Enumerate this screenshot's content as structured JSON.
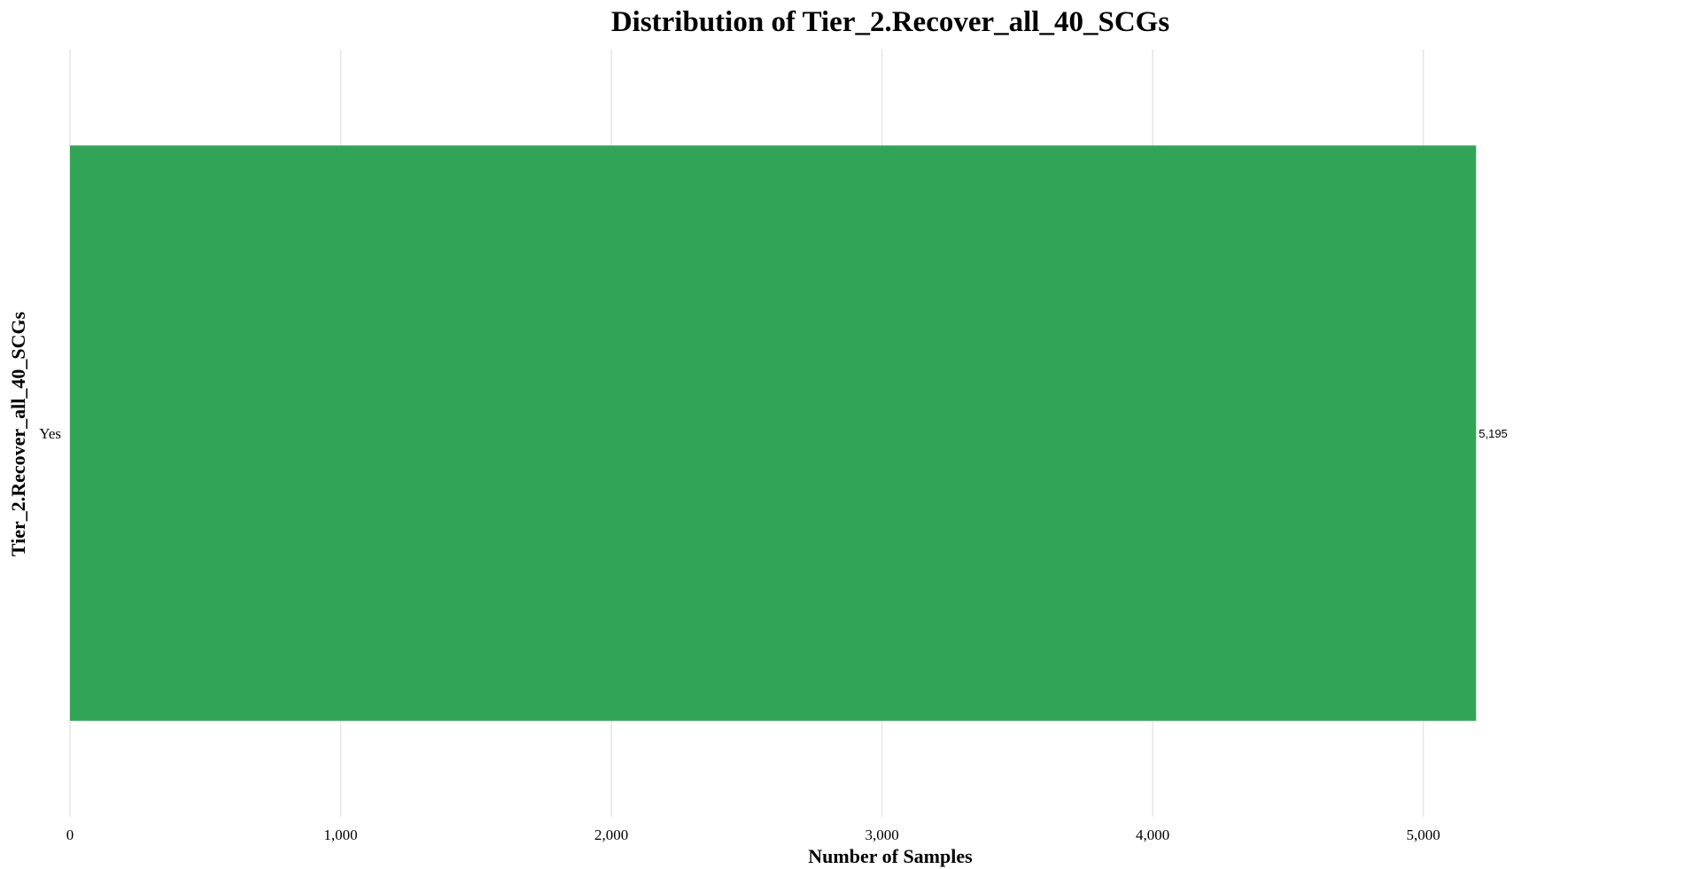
{
  "chart_data": {
    "type": "bar",
    "orientation": "horizontal",
    "title": "Distribution of Tier_2.Recover_all_40_SCGs",
    "xlabel": "Number of Samples",
    "ylabel": "Tier_2.Recover_all_40_SCGs",
    "categories": [
      "Yes"
    ],
    "values": [
      5195
    ],
    "value_labels": [
      "5,195"
    ],
    "xlim": [
      0,
      5600
    ],
    "xticks": [
      0,
      1000,
      2000,
      3000,
      4000,
      5000
    ],
    "xtick_labels": [
      "0",
      "1,000",
      "2,000",
      "3,000",
      "4,000",
      "5,000"
    ],
    "grid": "vertical",
    "legend": "none",
    "bar_color": "#32a457"
  }
}
